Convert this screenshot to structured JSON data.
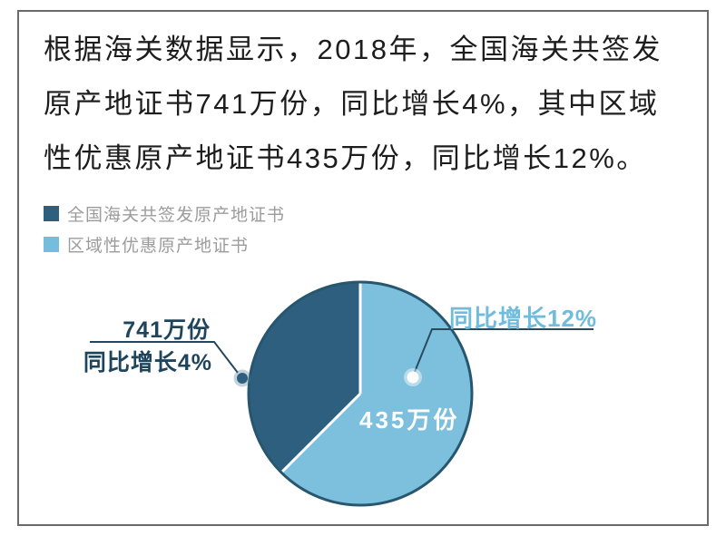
{
  "page": {
    "background": "#ffffff",
    "frame_border_color": "#6a6a6a"
  },
  "headline": {
    "lines": [
      "根据海关数据显示，2018年，全国海关共签发",
      "原产地证书741万份，同比增长4%，其中区域",
      "性优惠原产地证书435万份，同比增长12%。"
    ],
    "full_text": "根据海关数据显示，2018年，全国海关共签发原产地证书741万份，同比增长4%，其中区域性优惠原产地证书435万份，同比增长12%。"
  },
  "legend": {
    "items": [
      {
        "label": "全国海关共签发原产地证书",
        "color": "#2e5f7e"
      },
      {
        "label": "区域性优惠原产地证书",
        "color": "#74bddc"
      }
    ]
  },
  "chart_data": {
    "type": "pie",
    "unit": "万份",
    "slices": [
      {
        "name": "区域性优惠原产地证书",
        "value": 435,
        "value_label": "435万份",
        "growth_label": "同比增长12%",
        "color": "#7cc0dd",
        "start_deg": 0,
        "sweep_deg": 225
      },
      {
        "name": "全国海关共签发原产地证书",
        "value": 741,
        "value_label": "741万份",
        "growth_label": "同比增长4%",
        "color": "#2e5f7e",
        "start_deg": 225,
        "sweep_deg": 135
      }
    ],
    "layout": {
      "center": [
        397,
        434
      ],
      "radius": 123,
      "outline_color": "#27566f",
      "divider_color": "#ffffff",
      "callout_line_color": "#23485d",
      "legend_position": "top-left",
      "inside_label_color": "#ffffff",
      "dark_callout_text_color": "#1f455c",
      "light_callout_text_color": "#6fbcdc"
    }
  }
}
